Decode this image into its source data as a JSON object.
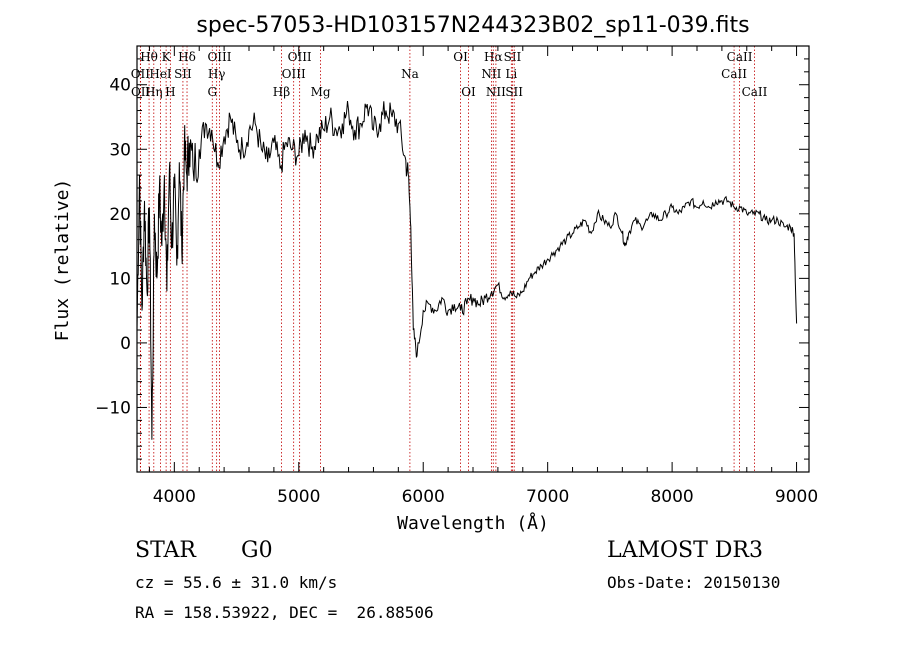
{
  "chart_data": {
    "type": "line",
    "title": "spec-57053-HD103157N244323B02_sp11-039.fits",
    "xlabel": "Wavelength (Å)",
    "ylabel": "Flux (relative)",
    "xlim": [
      3700,
      9100
    ],
    "ylim": [
      -20,
      46
    ],
    "xticks": [
      4000,
      5000,
      6000,
      7000,
      8000,
      9000
    ],
    "yticks": [
      -10,
      0,
      10,
      20,
      30,
      40
    ],
    "series": [
      {
        "name": "flux",
        "x": [
          3700,
          3720,
          3740,
          3760,
          3780,
          3800,
          3820,
          3840,
          3860,
          3880,
          3900,
          3920,
          3940,
          3960,
          3980,
          4000,
          4020,
          4040,
          4060,
          4080,
          4100,
          4120,
          4150,
          4200,
          4250,
          4300,
          4350,
          4400,
          4450,
          4500,
          4550,
          4600,
          4650,
          4700,
          4750,
          4800,
          4850,
          4900,
          4950,
          5000,
          5050,
          5100,
          5150,
          5200,
          5250,
          5300,
          5350,
          5400,
          5450,
          5500,
          5550,
          5600,
          5650,
          5700,
          5750,
          5800,
          5850,
          5880,
          5900,
          5920,
          5950,
          6000,
          6050,
          6100,
          6150,
          6200,
          6250,
          6300,
          6350,
          6400,
          6450,
          6500,
          6550,
          6600,
          6650,
          6700,
          6750,
          6800,
          6850,
          6900,
          6950,
          7000,
          7050,
          7100,
          7150,
          7200,
          7250,
          7300,
          7350,
          7400,
          7450,
          7500,
          7550,
          7600,
          7620,
          7650,
          7700,
          7750,
          7800,
          7850,
          7900,
          7950,
          8000,
          8050,
          8100,
          8150,
          8200,
          8250,
          8300,
          8350,
          8400,
          8450,
          8500,
          8550,
          8600,
          8650,
          8700,
          8750,
          8800,
          8850,
          8900,
          8950,
          8980,
          9000
        ],
        "y": [
          2,
          26,
          5,
          22,
          8,
          21,
          -15,
          20,
          10,
          24,
          15,
          26,
          8,
          27,
          15,
          24,
          12,
          28,
          14,
          30,
          26,
          31,
          27,
          30,
          34,
          33,
          28,
          32,
          35,
          31,
          30,
          33,
          34,
          30,
          28,
          31,
          27,
          31,
          30,
          29,
          33,
          30,
          32,
          33,
          35,
          33,
          34,
          36,
          33,
          34,
          37,
          33,
          34,
          36,
          35,
          34,
          29,
          26,
          18,
          2,
          -2,
          5,
          6,
          5,
          7,
          5,
          6,
          5,
          6,
          7,
          6,
          7,
          8,
          9,
          7,
          8,
          7,
          8,
          10,
          11,
          12,
          13,
          14,
          15,
          16,
          17,
          18,
          19,
          17,
          20,
          19,
          18,
          20,
          17,
          15,
          17,
          19,
          18,
          19,
          20,
          19,
          20,
          21,
          20,
          21,
          22,
          21,
          22,
          21,
          22,
          22,
          22,
          21,
          21,
          20,
          20,
          20,
          19,
          19,
          19,
          18,
          18,
          17,
          3
        ]
      }
    ],
    "spectral_lines": [
      {
        "label": "Hθ",
        "wavelength": 3797,
        "row": 1
      },
      {
        "label": "OII",
        "wavelength": 3727,
        "row": 2
      },
      {
        "label": "OII",
        "wavelength": 3729,
        "row": 3
      },
      {
        "label": "Hη",
        "wavelength": 3835,
        "row": 3
      },
      {
        "label": "K",
        "wavelength": 3934,
        "row": 1
      },
      {
        "label": "HeI",
        "wavelength": 3889,
        "row": 2
      },
      {
        "label": "SII",
        "wavelength": 4069,
        "row": 2
      },
      {
        "label": "H",
        "wavelength": 3968,
        "row": 3
      },
      {
        "label": "Hδ",
        "wavelength": 4102,
        "row": 1
      },
      {
        "label": "OIII",
        "wavelength": 4363,
        "row": 1
      },
      {
        "label": "Hγ",
        "wavelength": 4340,
        "row": 2
      },
      {
        "label": "G",
        "wavelength": 4305,
        "row": 3
      },
      {
        "label": "OIII",
        "wavelength": 5007,
        "row": 1
      },
      {
        "label": "OIII",
        "wavelength": 4959,
        "row": 2
      },
      {
        "label": "Hβ",
        "wavelength": 4861,
        "row": 3
      },
      {
        "label": "Mg",
        "wavelength": 5175,
        "row": 3
      },
      {
        "label": "Na",
        "wavelength": 5893,
        "row": 2
      },
      {
        "label": "OI",
        "wavelength": 6300,
        "row": 1
      },
      {
        "label": "OI",
        "wavelength": 6364,
        "row": 3
      },
      {
        "label": "Hα",
        "wavelength": 6563,
        "row": 1
      },
      {
        "label": "SII",
        "wavelength": 6717,
        "row": 1
      },
      {
        "label": "NII",
        "wavelength": 6548,
        "row": 2
      },
      {
        "label": "Li",
        "wavelength": 6708,
        "row": 2
      },
      {
        "label": "NII",
        "wavelength": 6584,
        "row": 3
      },
      {
        "label": "SII",
        "wavelength": 6731,
        "row": 3
      },
      {
        "label": "CaII",
        "wavelength": 8542,
        "row": 1
      },
      {
        "label": "CaII",
        "wavelength": 8498,
        "row": 2
      },
      {
        "label": "CaII",
        "wavelength": 8662,
        "row": 3
      }
    ]
  },
  "info": {
    "object_type": "STAR",
    "subclass": "G0",
    "survey": "LAMOST DR3",
    "cz": "cz = 55.6 ± 31.0 km/s",
    "obs_date": "Obs-Date: 20150130",
    "coords": "RA = 158.53922, DEC =  26.88506"
  }
}
